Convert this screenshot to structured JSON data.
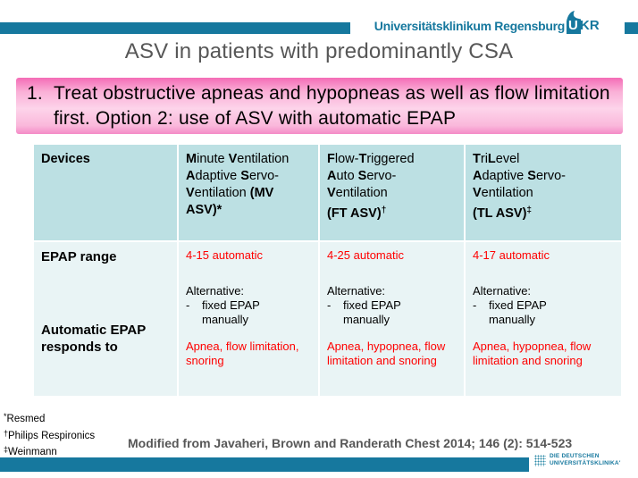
{
  "colors": {
    "teal": "#16789E",
    "title_gray": "#575757",
    "red": "#FF0000",
    "table_header_bg": "#BCE0E3",
    "table_row_bg": "#E9F4F5",
    "pink_dark": "#F46CB6",
    "pink_light": "#FDD4EA"
  },
  "header": {
    "org_name": "Universitätsklinikum Regensburg",
    "logo_text": "UKR",
    "logo_u": "U",
    "logo_kr": "KR"
  },
  "title": "ASV in patients with predominantly CSA",
  "callout": {
    "number": "1.",
    "text": "Treat obstructive apneas and hypopneas as well as flow limitation first. Option 2: use of ASV with automatic EPAP"
  },
  "table": {
    "header_cells": [
      {
        "segments": [
          {
            "t": "Devices",
            "b": true
          }
        ]
      },
      {
        "segments": [
          {
            "t": "M",
            "b": true
          },
          {
            "t": "inute "
          },
          {
            "t": "V",
            "b": true
          },
          {
            "t": "entilation"
          },
          {
            "br": true
          },
          {
            "t": "A",
            "b": true
          },
          {
            "t": "daptive "
          },
          {
            "t": "S",
            "b": true
          },
          {
            "t": "ervo-"
          },
          {
            "br": true
          },
          {
            "t": "V",
            "b": true
          },
          {
            "t": "entilation "
          },
          {
            "t": "(MV",
            "b": true
          },
          {
            "br": true
          },
          {
            "t": "ASV)*",
            "b": true
          }
        ]
      },
      {
        "segments": [
          {
            "t": "F",
            "b": true
          },
          {
            "t": "low-"
          },
          {
            "t": "T",
            "b": true
          },
          {
            "t": "riggered"
          },
          {
            "br": true
          },
          {
            "t": "A",
            "b": true
          },
          {
            "t": "uto "
          },
          {
            "t": "S",
            "b": true
          },
          {
            "t": "ervo-"
          },
          {
            "br": true
          },
          {
            "t": "V",
            "b": true
          },
          {
            "t": "entilation"
          },
          {
            "br": true
          },
          {
            "t": "(FT ASV)",
            "b": true
          },
          {
            "t": "†",
            "b": true,
            "sup": true
          }
        ]
      },
      {
        "segments": [
          {
            "t": "T",
            "b": true
          },
          {
            "t": "ri"
          },
          {
            "t": "L",
            "b": true
          },
          {
            "t": "evel"
          },
          {
            "br": true
          },
          {
            "t": "A",
            "b": true
          },
          {
            "t": "daptive "
          },
          {
            "t": "S",
            "b": true
          },
          {
            "t": "ervo-"
          },
          {
            "br": true
          },
          {
            "t": "V",
            "b": true
          },
          {
            "t": "entilation"
          },
          {
            "br": true
          },
          {
            "t": "(TL ASV)",
            "b": true
          },
          {
            "t": "‡",
            "b": true,
            "sup": true
          }
        ]
      }
    ],
    "row_labels": {
      "top": "EPAP range",
      "bottom": "Automatic EPAP responds to"
    },
    "body_cells": [
      {
        "epap_range": "4-15 automatic",
        "alternative_label": "Alternative:",
        "bullet": "-",
        "alternative_item": "fixed EPAP manually",
        "responds_to": "Apnea, flow limitation, snoring"
      },
      {
        "epap_range": "4-25 automatic",
        "alternative_label": "Alternative:",
        "bullet": "-",
        "alternative_item": "fixed EPAP manually",
        "responds_to": "Apnea, hypopnea, flow limitation and snoring"
      },
      {
        "epap_range": "4-17 automatic",
        "alternative_label": "Alternative:",
        "bullet": "-",
        "alternative_item": "fixed EPAP manually",
        "responds_to": "Apnea, hypopnea, flow limitation and snoring"
      }
    ]
  },
  "footnotes": [
    {
      "mark": "*",
      "text": "Resmed"
    },
    {
      "mark": "†",
      "text": "Philips Respironics"
    },
    {
      "mark": "‡",
      "text": "Weinmann"
    }
  ],
  "citation": "Modified from Javaheri, Brown and Randerath Chest 2014; 146 (2): 514-523",
  "footer_logo": {
    "line1": "DIE DEUTSCHEN",
    "line2": "UNIVERSITÄTSKLINIKA'"
  }
}
